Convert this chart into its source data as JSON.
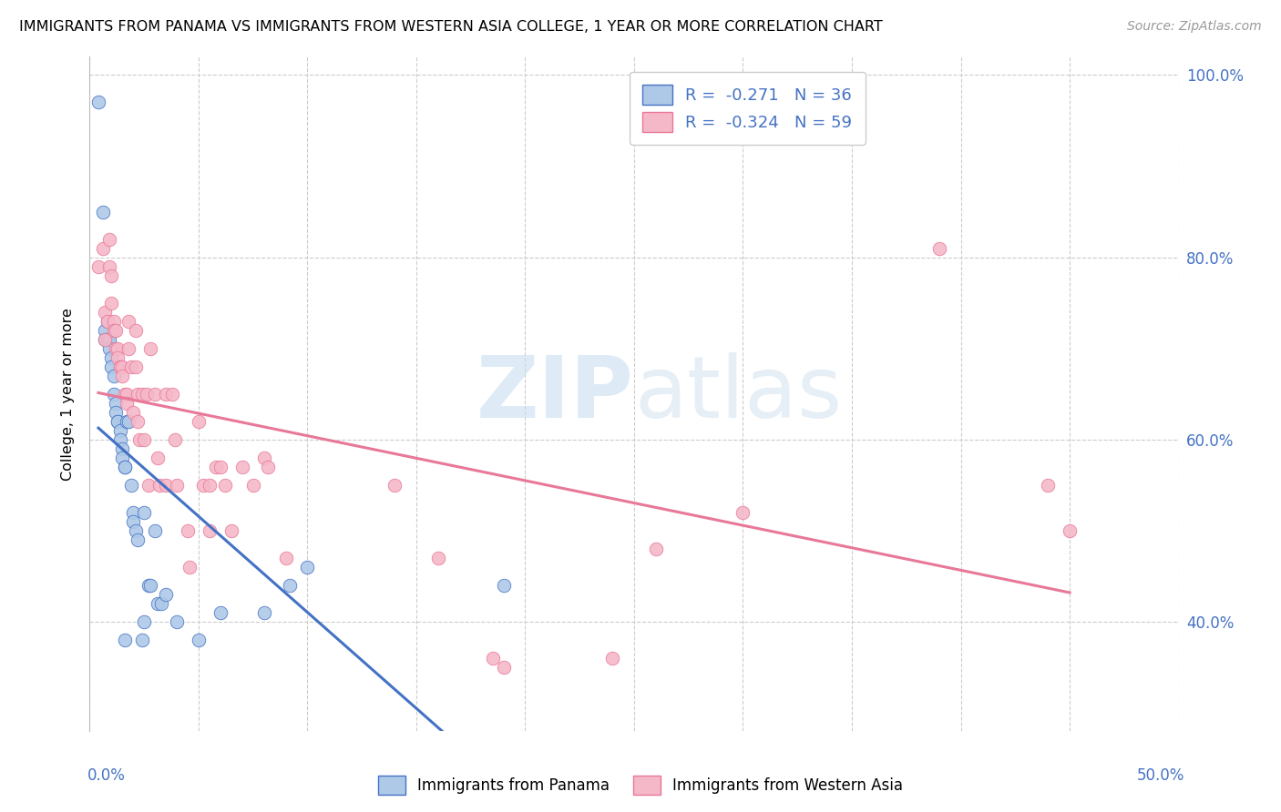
{
  "title": "IMMIGRANTS FROM PANAMA VS IMMIGRANTS FROM WESTERN ASIA COLLEGE, 1 YEAR OR MORE CORRELATION CHART",
  "source": "Source: ZipAtlas.com",
  "ylabel": "College, 1 year or more",
  "legend_blue_label": "Immigrants from Panama",
  "legend_pink_label": "Immigrants from Western Asia",
  "legend_blue_R": "-0.271",
  "legend_blue_N": "36",
  "legend_pink_R": "-0.324",
  "legend_pink_N": "59",
  "watermark_zip": "ZIP",
  "watermark_atlas": "atlas",
  "blue_color": "#aec9e8",
  "pink_color": "#f5b8c8",
  "blue_line_color": "#4472c4",
  "pink_line_color": "#e87898",
  "blue_scatter": [
    [
      0.4,
      97.0
    ],
    [
      0.6,
      85.0
    ],
    [
      0.7,
      72.0
    ],
    [
      0.7,
      71.0
    ],
    [
      0.8,
      73.0
    ],
    [
      0.8,
      71.0
    ],
    [
      0.9,
      71.0
    ],
    [
      0.9,
      70.0
    ],
    [
      1.0,
      69.0
    ],
    [
      1.0,
      68.0
    ],
    [
      1.1,
      67.0
    ],
    [
      1.1,
      65.0
    ],
    [
      1.2,
      64.0
    ],
    [
      1.2,
      63.0
    ],
    [
      1.3,
      62.0
    ],
    [
      1.3,
      62.0
    ],
    [
      1.4,
      61.0
    ],
    [
      1.4,
      60.0
    ],
    [
      1.5,
      59.0
    ],
    [
      1.5,
      58.0
    ],
    [
      1.6,
      57.0
    ],
    [
      1.6,
      57.0
    ],
    [
      1.7,
      62.0
    ],
    [
      1.8,
      62.0
    ],
    [
      1.9,
      55.0
    ],
    [
      2.0,
      52.0
    ],
    [
      2.0,
      51.0
    ],
    [
      2.1,
      50.0
    ],
    [
      2.2,
      49.0
    ],
    [
      2.5,
      52.0
    ],
    [
      2.7,
      44.0
    ],
    [
      2.8,
      44.0
    ],
    [
      3.0,
      50.0
    ],
    [
      3.1,
      42.0
    ],
    [
      3.3,
      42.0
    ],
    [
      3.5,
      43.0
    ]
  ],
  "blue_scatter_low": [
    [
      1.6,
      38.0
    ],
    [
      2.4,
      38.0
    ],
    [
      2.5,
      40.0
    ],
    [
      4.0,
      40.0
    ],
    [
      5.0,
      38.0
    ],
    [
      6.0,
      41.0
    ],
    [
      8.0,
      41.0
    ],
    [
      9.2,
      44.0
    ],
    [
      10.0,
      46.0
    ],
    [
      19.0,
      44.0
    ]
  ],
  "pink_scatter": [
    [
      0.4,
      79.0
    ],
    [
      0.6,
      81.0
    ],
    [
      0.7,
      74.0
    ],
    [
      0.7,
      71.0
    ],
    [
      0.8,
      73.0
    ],
    [
      0.9,
      82.0
    ],
    [
      0.9,
      79.0
    ],
    [
      1.0,
      78.0
    ],
    [
      1.0,
      75.0
    ],
    [
      1.1,
      73.0
    ],
    [
      1.1,
      72.0
    ],
    [
      1.2,
      72.0
    ],
    [
      1.2,
      70.0
    ],
    [
      1.3,
      70.0
    ],
    [
      1.3,
      69.0
    ],
    [
      1.4,
      68.0
    ],
    [
      1.4,
      68.0
    ],
    [
      1.5,
      68.0
    ],
    [
      1.5,
      67.0
    ],
    [
      1.6,
      65.0
    ],
    [
      1.7,
      65.0
    ],
    [
      1.7,
      64.0
    ],
    [
      1.8,
      73.0
    ],
    [
      1.8,
      70.0
    ],
    [
      1.9,
      68.0
    ],
    [
      2.0,
      63.0
    ],
    [
      2.1,
      72.0
    ],
    [
      2.1,
      68.0
    ],
    [
      2.2,
      65.0
    ],
    [
      2.2,
      62.0
    ],
    [
      2.3,
      60.0
    ],
    [
      2.4,
      65.0
    ],
    [
      2.5,
      60.0
    ],
    [
      2.6,
      65.0
    ],
    [
      2.7,
      55.0
    ],
    [
      2.8,
      70.0
    ],
    [
      3.0,
      65.0
    ],
    [
      3.1,
      58.0
    ],
    [
      3.2,
      55.0
    ],
    [
      3.5,
      65.0
    ],
    [
      3.5,
      55.0
    ],
    [
      3.8,
      65.0
    ],
    [
      3.9,
      60.0
    ],
    [
      4.0,
      55.0
    ],
    [
      4.5,
      50.0
    ],
    [
      4.6,
      46.0
    ],
    [
      5.0,
      62.0
    ],
    [
      5.2,
      55.0
    ],
    [
      5.5,
      55.0
    ],
    [
      5.5,
      50.0
    ],
    [
      5.8,
      57.0
    ],
    [
      6.0,
      57.0
    ],
    [
      6.2,
      55.0
    ],
    [
      6.5,
      50.0
    ],
    [
      7.0,
      57.0
    ],
    [
      7.5,
      55.0
    ],
    [
      8.0,
      58.0
    ],
    [
      8.2,
      57.0
    ],
    [
      9.0,
      47.0
    ]
  ],
  "pink_scatter_far": [
    [
      14.0,
      55.0
    ],
    [
      16.0,
      47.0
    ],
    [
      18.5,
      36.0
    ],
    [
      19.0,
      35.0
    ],
    [
      24.0,
      36.0
    ],
    [
      26.0,
      48.0
    ],
    [
      30.0,
      52.0
    ],
    [
      39.0,
      81.0
    ],
    [
      44.0,
      55.0
    ],
    [
      45.0,
      50.0
    ]
  ],
  "xlim": [
    0.0,
    50.0
  ],
  "ylim": [
    28.0,
    102.0
  ],
  "yticks": [
    40.0,
    60.0,
    80.0,
    100.0
  ],
  "xticks": [
    0,
    5,
    10,
    15,
    20,
    25,
    30,
    35,
    40,
    45,
    50
  ]
}
